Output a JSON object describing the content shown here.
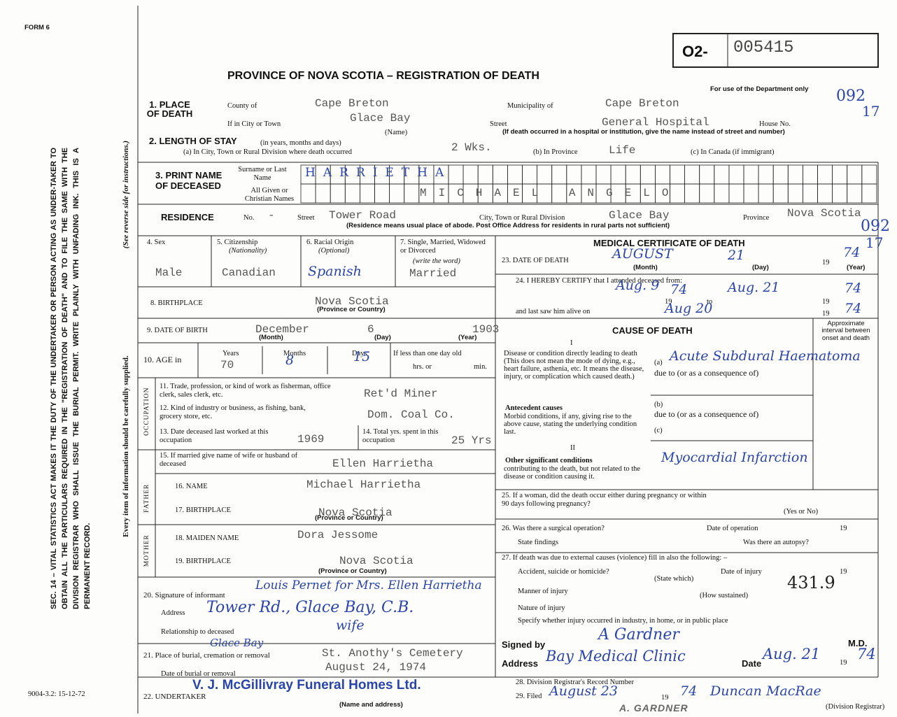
{
  "form_label": "FORM 6",
  "registration": {
    "prefix": "O2-",
    "number": "005415"
  },
  "title": "PROVINCE OF NOVA SCOTIA – REGISTRATION OF DEATH",
  "department_note": "For use of the Department only",
  "department_codes": [
    "092",
    "17",
    "092",
    "17"
  ],
  "side_note": "SEC. 14 – VITAL STATISTICS ACT MAKES IT THE DUTY OF THE UNDERTAKER OR PERSON ACTING AS UNDER-TAKER TO OBTAIN ALL THE PARTICULARS REQUIRED IN THE \"REGISTRATION OF DEATH\" AND TO FILE THE SAME WITH THE DIVISION REGISTRAR WHO SHALL ISSUE THE BURIAL PERMIT. WRITE PLAINLY WITH UNFADING INK. THIS IS A PERMANENT RECORD.",
  "reverse_note": "(See reverse side for instructions.)",
  "care_note": "Every item of information should be carefully supplied.",
  "form_code": "9004-3.2: 15-12-72",
  "place": {
    "label": "1. PLACE OF DEATH",
    "county_label": "County of",
    "county": "Cape Breton",
    "municipality_label": "Municipality of",
    "municipality": "Cape Breton",
    "city_label": "If in City or Town",
    "city": "Glace Bay",
    "name_label": "(Name)",
    "street_label": "Street",
    "street": "General Hospital",
    "house_label": "House No.",
    "hospital_note": "(If death occurred in a hospital or institution, give the name instead of street and number)"
  },
  "stay": {
    "label": "2. LENGTH OF STAY",
    "hint": "(in years, months and days)",
    "a_label": "(a) In City, Town or Rural Division where death occurred",
    "a": "2 Wks.",
    "b_label": "(b) In Province",
    "b": "Life",
    "c_label": "(c) In Canada (if immigrant)"
  },
  "deceased": {
    "label": "3. PRINT NAME OF DECEASED",
    "surname_label": "Surname or Last Name",
    "surname": "HARRIETHA",
    "given_label": "All Given or Christian Names",
    "given": "MICHAEL ANGELO"
  },
  "residence": {
    "label": "RESIDENCE",
    "no_label": "No.",
    "no": "-",
    "street_label": "Street",
    "street": "Tower Road",
    "city_label": "City, Town or Rural Division",
    "city": "Glace Bay",
    "province_label": "Province",
    "province": "Nova Scotia",
    "note": "(Residence means usual place of abode. Post Office Address for residents in rural parts not sufficient)"
  },
  "personal": {
    "sex_label": "4. Sex",
    "sex": "Male",
    "citizenship_label": "5. Citizenship",
    "citizenship_hint": "(Nationality)",
    "citizenship": "Canadian",
    "racial_label": "6. Racial Origin",
    "racial_hint": "(Optional)",
    "racial": "Spanish",
    "marital_label": "7. Single, Married, Widowed or Divorced",
    "marital_hint": "(write the word)",
    "marital": "Married"
  },
  "birthplace": {
    "label": "8. BIRTHPLACE",
    "value": "Nova Scotia",
    "hint": "(Province or Country)"
  },
  "birth_date": {
    "label": "9. DATE OF BIRTH",
    "month": "December",
    "day": "6",
    "year": "1903",
    "month_hint": "(Month)",
    "day_hint": "(Day)",
    "year_hint": "(Year)"
  },
  "age": {
    "label": "10. AGE in",
    "years_label": "Years",
    "years": "70",
    "months_label": "Months",
    "months": "8",
    "days_label": "Days",
    "days": "15",
    "less_label": "If less than one day old",
    "hrs": "hrs. or",
    "min": "min."
  },
  "occupation": {
    "side": "OCCUPATION",
    "trade_label": "11. Trade, profession, or kind of work as fisherman, office clerk, sales clerk, etc.",
    "trade": "Ret'd Miner",
    "industry_label": "12. Kind of industry or business, as fishing, bank, grocery store, etc.",
    "industry": "Dom. Coal Co.",
    "last_worked_label": "13. Date deceased last worked at this occupation",
    "last_worked": "1969",
    "total_label": "14. Total yrs. spent in this occupation",
    "total": "25 Yrs"
  },
  "spouse": {
    "label": "15. If married give name of wife or husband of deceased",
    "value": "Ellen Harrietha"
  },
  "father": {
    "side": "FATHER",
    "name_label": "16. NAME",
    "name": "Michael Harrietha",
    "birthplace_label": "17. BIRTHPLACE",
    "birthplace": "Nova Scotia",
    "hint": "(Province or Country)"
  },
  "mother": {
    "side": "MOTHER",
    "name_label": "18. MAIDEN NAME",
    "name": "Dora Jessome",
    "birthplace_label": "19. BIRTHPLACE",
    "birthplace": "Nova Scotia",
    "hint": "(Province or Country)"
  },
  "informant": {
    "signature_label": "20. Signature of informant",
    "signature": "Louis Pernet for Mrs. Ellen Harrietha",
    "address_label": "Address",
    "address": "Tower Rd., Glace Bay, C.B.",
    "relationship_label": "Relationship to deceased",
    "relationship": "wife"
  },
  "burial": {
    "label": "21. Place of burial, cremation or removal",
    "place_handwritten": "Glace Bay",
    "place": "St. Anothy's Cemetery",
    "date_label": "Date of burial or removal",
    "date": "August 24, 1974"
  },
  "undertaker": {
    "label": "22. UNDERTAKER",
    "value": "V. J. McGillivray Funeral Homes Ltd.",
    "hint": "(Name and address)"
  },
  "medical": {
    "heading": "MEDICAL CERTIFICATE OF DEATH",
    "date_label": "23. DATE OF DEATH",
    "month": "AUGUST",
    "day": "21",
    "year_prefix": "19",
    "year": "74",
    "month_hint": "(Month)",
    "day_hint": "(Day)",
    "year_hint": "(Year)"
  },
  "certify": {
    "label": "24. I HEREBY CERTIFY that I attended deceased from:",
    "from": "Aug. 9",
    "from_prefix": "19",
    "from_year": "74",
    "to": "to",
    "to_date": "Aug. 21",
    "to_prefix": "19",
    "to_year": "74",
    "last_saw_label": "and last saw him alive on",
    "last_saw": "Aug 20",
    "last_prefix": "19",
    "last_year": "74"
  },
  "cause": {
    "heading": "CAUSE OF DEATH",
    "interval": "Approximate interval between onset and death",
    "part1": "I",
    "disease_label": "Disease or condition directly leading to death (This does not mean the mode of dying, e.g., heart failure, asthenia, etc. It means the disease, injury, or complication which caused death.)",
    "a_label": "(a)",
    "a": "Acute Subdural Haematoma",
    "due_a": "due to (or as a consequence of)",
    "antecedent_label": "Antecedent causes",
    "antecedent_text": "Morbid conditions, if any, giving rise to the above cause, stating the underlying condition last.",
    "b_label": "(b)",
    "due_b": "due to (or as a consequence of)",
    "c_label": "(c)",
    "part2": "II",
    "other_label": "Other significant conditions",
    "other_text": "contributing to the death, but not related to the disease or condition causing it.",
    "other": "Myocardial Infarction"
  },
  "q25": {
    "label": "25. If a woman, did the death occur either during pregnancy or within 90 days following pregnancy?",
    "hint": "(Yes or No)"
  },
  "q26": {
    "label": "26. Was there a surgical operation?",
    "operation_date": "Date of operation",
    "prefix": "19",
    "findings": "State findings",
    "autopsy": "Was there an autopsy?"
  },
  "q27": {
    "label": "27. If death was due to external causes (violence) fill in also the following: –",
    "accident": "Accident, suicide or homicide?",
    "injury_date": "Date of injury",
    "prefix": "19",
    "state": "(State which)",
    "manner": "Manner of injury",
    "sustained": "(How sustained)",
    "code": "431.9",
    "nature": "Nature of injury",
    "specify": "Specify whether injury occurred in industry, in home, or in public place"
  },
  "signed": {
    "label": "Signed by",
    "signature": "A Gardner",
    "md": "M.D.",
    "address_label": "Address",
    "address": "Bay Medical Clinic",
    "date_label": "Date",
    "date": "Aug. 21",
    "prefix": "19",
    "year": "74"
  },
  "q28": {
    "label": "28. Division Registrar's Record Number"
  },
  "q29": {
    "label": "29. Filed",
    "date": "August 23",
    "prefix": "19",
    "year": "74",
    "registrar": "Duncan MacRae",
    "hint": "(Division Registrar)"
  },
  "stamp": "A. GARDNER"
}
